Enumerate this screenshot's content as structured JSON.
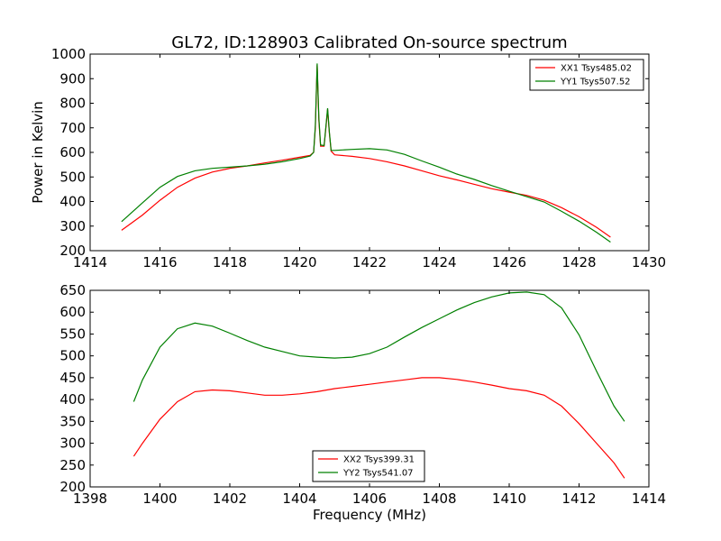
{
  "title": "GL72, ID:128903 Calibrated On-source spectrum",
  "chart_data": [
    {
      "type": "line",
      "title": "GL72, ID:128903 Calibrated On-source spectrum",
      "xlabel": "",
      "ylabel": "Power in Kelvin",
      "xlim": [
        1414,
        1430
      ],
      "ylim": [
        200,
        1000
      ],
      "x_ticks": [
        1414,
        1416,
        1418,
        1420,
        1422,
        1424,
        1426,
        1428,
        1430
      ],
      "y_ticks": [
        200,
        300,
        400,
        500,
        600,
        700,
        800,
        900,
        1000
      ],
      "grid": false,
      "legend_position": "top-right",
      "series": [
        {
          "name": "XX1 Tsys485.02",
          "color": "#ff0000",
          "x": [
            1414.9,
            1415.5,
            1416.0,
            1416.5,
            1417.0,
            1417.5,
            1418.0,
            1418.5,
            1419.0,
            1419.5,
            1420.0,
            1420.3,
            1420.4,
            1420.45,
            1420.5,
            1420.55,
            1420.6,
            1420.7,
            1420.75,
            1420.8,
            1420.85,
            1420.9,
            1421.0,
            1421.5,
            1422.0,
            1422.5,
            1423.0,
            1423.5,
            1424.0,
            1424.5,
            1425.0,
            1425.5,
            1426.0,
            1426.5,
            1427.0,
            1427.5,
            1428.0,
            1428.5,
            1428.9
          ],
          "y": [
            283,
            345,
            405,
            458,
            495,
            520,
            535,
            545,
            557,
            568,
            580,
            588,
            600,
            700,
            955,
            730,
            625,
            625,
            700,
            775,
            680,
            605,
            590,
            584,
            575,
            562,
            545,
            525,
            505,
            488,
            470,
            452,
            438,
            425,
            405,
            375,
            338,
            295,
            255
          ]
        },
        {
          "name": "YY1 Tsys507.52",
          "color": "#008000",
          "x": [
            1414.9,
            1415.5,
            1416.0,
            1416.5,
            1417.0,
            1417.5,
            1418.0,
            1418.5,
            1419.0,
            1419.5,
            1420.0,
            1420.3,
            1420.4,
            1420.45,
            1420.5,
            1420.55,
            1420.6,
            1420.7,
            1420.75,
            1420.8,
            1420.85,
            1420.9,
            1421.0,
            1421.5,
            1422.0,
            1422.5,
            1423.0,
            1423.5,
            1424.0,
            1424.5,
            1425.0,
            1425.5,
            1426.0,
            1426.5,
            1427.0,
            1427.5,
            1428.0,
            1428.5,
            1428.9
          ],
          "y": [
            318,
            395,
            458,
            502,
            525,
            535,
            540,
            545,
            552,
            562,
            575,
            585,
            600,
            710,
            962,
            740,
            630,
            628,
            705,
            780,
            685,
            608,
            608,
            612,
            615,
            610,
            592,
            565,
            540,
            512,
            490,
            465,
            442,
            420,
            398,
            360,
            320,
            275,
            235
          ]
        }
      ]
    },
    {
      "type": "line",
      "title": "",
      "xlabel": "Frequency (MHz)",
      "ylabel": "",
      "xlim": [
        1398,
        1414
      ],
      "ylim": [
        200,
        650
      ],
      "x_ticks": [
        1398,
        1400,
        1402,
        1404,
        1406,
        1408,
        1410,
        1412,
        1414
      ],
      "y_ticks": [
        200,
        250,
        300,
        350,
        400,
        450,
        500,
        550,
        600,
        650
      ],
      "grid": false,
      "legend_position": "bottom-center",
      "series": [
        {
          "name": "XX2 Tsys399.31",
          "color": "#ff0000",
          "x": [
            1399.25,
            1399.5,
            1400.0,
            1400.5,
            1401.0,
            1401.5,
            1402.0,
            1402.5,
            1403.0,
            1403.5,
            1404.0,
            1404.5,
            1405.0,
            1405.5,
            1406.0,
            1406.5,
            1407.0,
            1407.5,
            1408.0,
            1408.5,
            1409.0,
            1409.5,
            1410.0,
            1410.5,
            1411.0,
            1411.5,
            1412.0,
            1412.5,
            1413.0,
            1413.3
          ],
          "y": [
            270,
            300,
            355,
            395,
            418,
            422,
            420,
            415,
            410,
            410,
            413,
            418,
            425,
            430,
            435,
            440,
            445,
            450,
            450,
            446,
            440,
            433,
            425,
            420,
            410,
            385,
            345,
            300,
            255,
            220
          ]
        },
        {
          "name": "YY2 Tsys541.07",
          "color": "#008000",
          "x": [
            1399.25,
            1399.5,
            1400.0,
            1400.5,
            1401.0,
            1401.5,
            1402.0,
            1402.5,
            1403.0,
            1403.5,
            1404.0,
            1404.5,
            1405.0,
            1405.5,
            1406.0,
            1406.5,
            1407.0,
            1407.5,
            1408.0,
            1408.5,
            1409.0,
            1409.5,
            1410.0,
            1410.5,
            1411.0,
            1411.5,
            1412.0,
            1412.5,
            1413.0,
            1413.3
          ],
          "y": [
            395,
            445,
            520,
            562,
            575,
            568,
            552,
            535,
            520,
            510,
            500,
            497,
            495,
            497,
            505,
            520,
            543,
            565,
            585,
            605,
            622,
            635,
            644,
            646,
            640,
            610,
            548,
            465,
            385,
            350
          ]
        }
      ]
    }
  ]
}
